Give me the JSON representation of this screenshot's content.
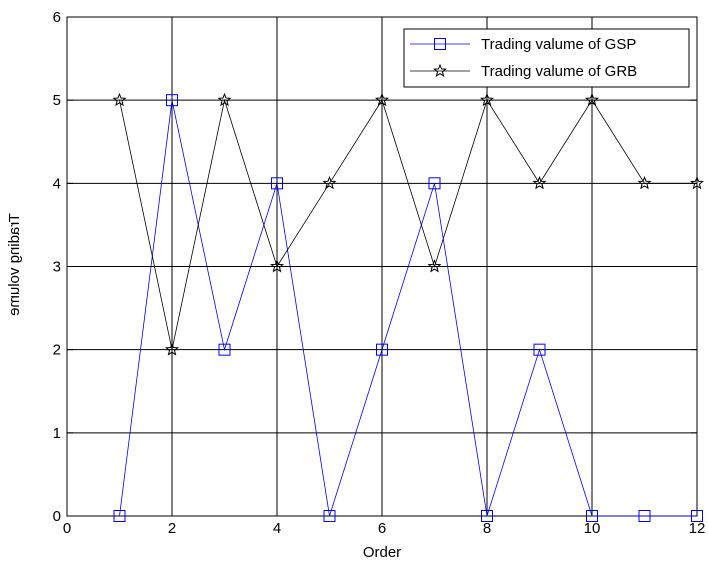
{
  "chart_data": {
    "type": "line",
    "title": "",
    "xlabel": "Order",
    "ylabel": "Trading volume",
    "xlim": [
      0,
      12
    ],
    "ylim": [
      0,
      6
    ],
    "xticks": [
      0,
      2,
      4,
      6,
      8,
      10,
      12
    ],
    "yticks": [
      0,
      1,
      2,
      3,
      4,
      5,
      6
    ],
    "grid": true,
    "legend": "top-right",
    "x": [
      1,
      2,
      3,
      4,
      5,
      6,
      7,
      8,
      9,
      10,
      11,
      12
    ],
    "series": [
      {
        "name": "Trading valume of GSP",
        "color": "#0000ff",
        "marker": "square",
        "values": [
          0,
          5,
          2,
          4,
          0,
          2,
          4,
          0,
          2,
          0,
          0,
          0
        ]
      },
      {
        "name": "Trading valume of GRB",
        "color": "#000000",
        "marker": "star",
        "values": [
          5,
          2,
          5,
          3,
          4,
          5,
          3,
          5,
          4,
          5,
          4,
          4
        ]
      }
    ]
  }
}
